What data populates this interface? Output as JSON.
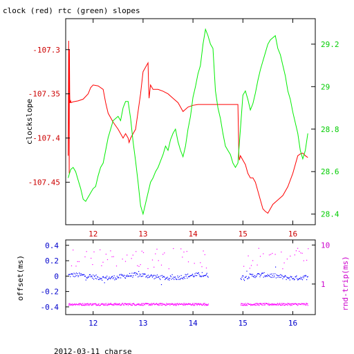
{
  "title": "clock (red) rtc (green) slopes",
  "footer": "2012-03-11 charse",
  "colors": {
    "red": "#ff0000",
    "green": "#00ee00",
    "blue": "#0000ff",
    "magenta": "#ff00ff",
    "axis": "#000000",
    "red_axis": "#cc0000",
    "green_axis": "#00cc00",
    "blue_axis": "#0000cc",
    "magenta_axis": "#cc00cc"
  },
  "chart_data": [
    {
      "id": "slopes",
      "type": "line",
      "title": "clock (red) rtc (green) slopes",
      "ylabel": "clockslope",
      "xlim": [
        11.45,
        16.45
      ],
      "ylim": [
        -107.498,
        -107.265
      ],
      "y2lim": [
        28.35,
        29.32
      ],
      "x_ticks": [
        12,
        13,
        14,
        15,
        16
      ],
      "y_ticks": [
        -107.3,
        -107.35,
        -107.4,
        -107.45
      ],
      "y_tick_labels": [
        "-107.3",
        "-107.35",
        "-107.4",
        "-107.45"
      ],
      "y2_ticks": [
        28.4,
        28.6,
        28.8,
        29,
        29.2
      ],
      "y2_tick_labels": [
        "28.4",
        "28.6",
        "28.8",
        "29",
        "29.2"
      ],
      "series": [
        {
          "name": "clock",
          "color": "red",
          "axis": "left",
          "x": [
            11.5,
            11.51,
            11.52,
            11.525,
            11.53,
            11.535,
            11.54,
            11.55,
            11.56,
            11.6,
            11.7,
            11.8,
            11.9,
            11.95,
            12.0,
            12.1,
            12.2,
            12.25,
            12.3,
            12.4,
            12.5,
            12.55,
            12.6,
            12.65,
            12.7,
            12.72,
            12.75,
            12.8,
            12.85,
            12.9,
            12.95,
            13.0,
            13.05,
            13.1,
            13.11,
            13.12,
            13.15,
            13.2,
            13.3,
            13.4,
            13.5,
            13.6,
            13.7,
            13.8,
            13.9,
            14.0,
            14.1,
            14.2,
            14.3,
            14.4,
            14.5,
            14.6,
            14.7,
            14.8,
            14.9,
            14.92,
            14.93,
            14.95,
            15.0,
            15.05,
            15.1,
            15.15,
            15.2,
            15.25,
            15.3,
            15.35,
            15.4,
            15.45,
            15.5,
            15.55,
            15.6,
            15.7,
            15.8,
            15.9,
            16.0,
            16.1,
            16.15,
            16.2,
            16.25,
            16.3
          ],
          "y": [
            -107.42,
            -107.29,
            -107.44,
            -107.3,
            -107.35,
            -107.36,
            -107.36,
            -107.358,
            -107.36,
            -107.359,
            -107.358,
            -107.356,
            -107.35,
            -107.343,
            -107.34,
            -107.341,
            -107.345,
            -107.36,
            -107.372,
            -107.382,
            -107.39,
            -107.395,
            -107.4,
            -107.395,
            -107.4,
            -107.405,
            -107.4,
            -107.395,
            -107.39,
            -107.37,
            -107.35,
            -107.325,
            -107.32,
            -107.315,
            -107.34,
            -107.355,
            -107.34,
            -107.345,
            -107.345,
            -107.347,
            -107.35,
            -107.355,
            -107.36,
            -107.37,
            -107.365,
            -107.363,
            -107.362,
            -107.362,
            -107.362,
            -107.362,
            -107.362,
            -107.362,
            -107.362,
            -107.362,
            -107.362,
            -107.42,
            -107.425,
            -107.42,
            -107.425,
            -107.43,
            -107.44,
            -107.445,
            -107.445,
            -107.45,
            -107.46,
            -107.47,
            -107.48,
            -107.483,
            -107.485,
            -107.48,
            -107.475,
            -107.47,
            -107.465,
            -107.455,
            -107.44,
            -107.42,
            -107.418,
            -107.417,
            -107.42,
            -107.422
          ]
        },
        {
          "name": "rtc",
          "color": "green",
          "axis": "right",
          "x": [
            11.5,
            11.55,
            11.6,
            11.65,
            11.7,
            11.75,
            11.8,
            11.85,
            11.9,
            11.95,
            12.0,
            12.05,
            12.1,
            12.15,
            12.2,
            12.25,
            12.3,
            12.35,
            12.4,
            12.45,
            12.5,
            12.55,
            12.6,
            12.65,
            12.7,
            12.75,
            12.8,
            12.85,
            12.9,
            12.95,
            13.0,
            13.05,
            13.1,
            13.15,
            13.2,
            13.25,
            13.3,
            13.35,
            13.4,
            13.45,
            13.5,
            13.55,
            13.6,
            13.65,
            13.7,
            13.75,
            13.8,
            13.85,
            13.9,
            13.95,
            14.0,
            14.05,
            14.1,
            14.15,
            14.2,
            14.25,
            14.3,
            14.35,
            14.4,
            14.45,
            14.5,
            14.55,
            14.6,
            14.65,
            14.7,
            14.75,
            14.8,
            14.85,
            14.9,
            14.95,
            15.0,
            15.05,
            15.1,
            15.15,
            15.2,
            15.25,
            15.3,
            15.35,
            15.4,
            15.45,
            15.5,
            15.55,
            15.6,
            15.65,
            15.7,
            15.75,
            15.8,
            15.85,
            15.9,
            15.95,
            16.0,
            16.05,
            16.1,
            16.15,
            16.2,
            16.25,
            16.3
          ],
          "y": [
            28.57,
            28.61,
            28.62,
            28.6,
            28.56,
            28.52,
            28.47,
            28.46,
            28.48,
            28.5,
            28.52,
            28.53,
            28.58,
            28.62,
            28.64,
            28.7,
            28.76,
            28.8,
            28.84,
            28.85,
            28.86,
            28.84,
            28.9,
            28.93,
            28.93,
            28.85,
            28.74,
            28.65,
            28.55,
            28.44,
            28.4,
            28.45,
            28.5,
            28.55,
            28.57,
            28.6,
            28.62,
            28.65,
            28.68,
            28.72,
            28.7,
            28.75,
            28.78,
            28.8,
            28.74,
            28.7,
            28.67,
            28.72,
            28.8,
            28.86,
            28.95,
            29.0,
            29.06,
            29.1,
            29.2,
            29.27,
            29.24,
            29.2,
            29.18,
            28.98,
            28.9,
            28.85,
            28.78,
            28.72,
            28.7,
            28.68,
            28.64,
            28.62,
            28.64,
            28.8,
            28.96,
            28.98,
            28.94,
            28.89,
            28.92,
            28.97,
            29.03,
            29.08,
            29.12,
            29.16,
            29.2,
            29.22,
            29.23,
            29.24,
            29.18,
            29.15,
            29.1,
            29.05,
            28.98,
            28.94,
            28.88,
            28.83,
            28.78,
            28.7,
            28.66,
            28.7,
            28.78
          ]
        }
      ]
    },
    {
      "id": "offsets",
      "type": "scatter",
      "ylabel": "offset(ms)",
      "y2label": "rnd-trip(ms)",
      "xlim": [
        11.45,
        16.45
      ],
      "ylim": [
        -0.5,
        0.47
      ],
      "y2lim": [
        0.165,
        13.5
      ],
      "y2_scale": "log",
      "x_ticks": [
        12,
        13,
        14,
        15,
        16
      ],
      "y_ticks": [
        0.4,
        0.2,
        0,
        -0.2,
        -0.4
      ],
      "y_tick_labels": [
        "0.4",
        "0.2",
        "0",
        "-0.2",
        "-0.4"
      ],
      "y2_ticks": [
        10,
        1
      ],
      "y2_tick_labels": [
        "10",
        "1"
      ],
      "series": [
        {
          "name": "offset",
          "color": "blue",
          "axis": "left",
          "ranges": [
            [
              11.5,
              14.3
            ],
            [
              14.95,
              16.3
            ]
          ]
        },
        {
          "name": "rnd-trip",
          "color": "magenta",
          "axis": "right",
          "ranges": [
            [
              11.5,
              14.3
            ],
            [
              14.95,
              16.3
            ]
          ]
        }
      ]
    }
  ]
}
